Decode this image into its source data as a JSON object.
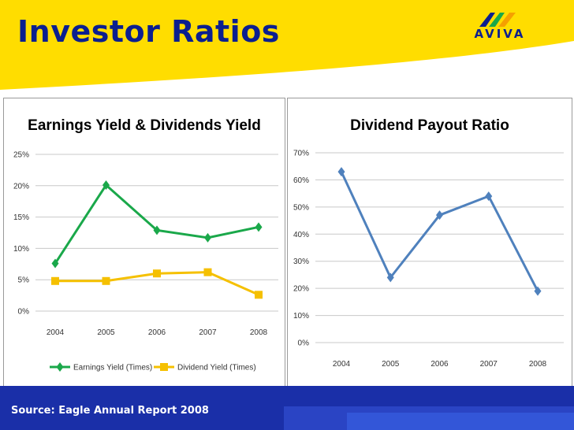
{
  "slide": {
    "title": "Investor Ratios",
    "logo_text": "AVIVA",
    "source": "Source: Eagle Annual Report 2008"
  },
  "colors": {
    "header_yellow": "#ffdd00",
    "title_blue": "#0b1f8f",
    "footer_blue": "#1a2fa8",
    "earnings_green": "#1aa84a",
    "dividend_yellow": "#f5c000",
    "payout_blue": "#4f81bd"
  },
  "chart_data": [
    {
      "type": "line",
      "title": "Earnings Yield & Dividends Yield",
      "categories": [
        "2004",
        "2005",
        "2006",
        "2007",
        "2008"
      ],
      "series": [
        {
          "name": "Earnings Yield (Times)",
          "values": [
            7.6,
            20.1,
            12.9,
            11.7,
            13.4
          ],
          "marker": "diamond",
          "color": "#1aa84a"
        },
        {
          "name": "Dividend Yield (Times)",
          "values": [
            4.8,
            4.8,
            6.0,
            6.2,
            2.6
          ],
          "marker": "square",
          "color": "#f5c000"
        }
      ],
      "yticks": [
        "0%",
        "5%",
        "10%",
        "15%",
        "20%",
        "25%"
      ],
      "ylim": [
        0,
        25
      ],
      "legend": "bottom",
      "grid": true
    },
    {
      "type": "line",
      "title": "Dividend Payout Ratio",
      "categories": [
        "2004",
        "2005",
        "2006",
        "2007",
        "2008"
      ],
      "series": [
        {
          "values": [
            63,
            24,
            47,
            54,
            19
          ],
          "marker": "diamond",
          "color": "#4f81bd"
        }
      ],
      "yticks": [
        "0%",
        "10%",
        "20%",
        "30%",
        "40%",
        "50%",
        "60%",
        "70%"
      ],
      "ylim": [
        0,
        70
      ],
      "legend": "none",
      "grid": true
    }
  ]
}
